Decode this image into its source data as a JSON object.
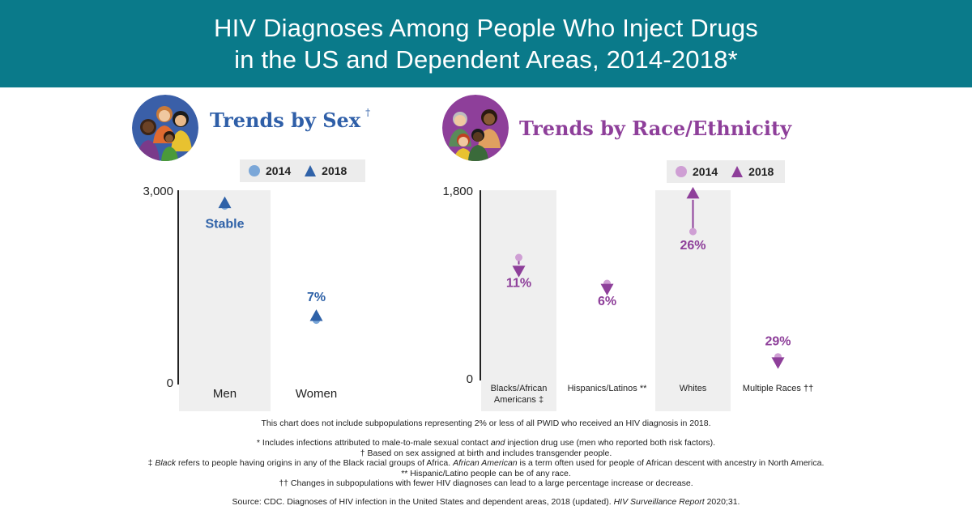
{
  "header": {
    "title_line1": "HIV Diagnoses Among People Who Inject Drugs",
    "title_line2": "in the US and Dependent Areas, 2014-2018*"
  },
  "colors": {
    "header_bg": "#0a7a8a",
    "sex_2014": "#7ba7d8",
    "sex_2018": "#2f62a8",
    "race_2014": "#cf9fd4",
    "race_2018": "#8e3f9a",
    "column_bg": "#efefef",
    "legend_bg": "#ececec"
  },
  "sex_section": {
    "title": "Trends by Sex",
    "title_mark": "†",
    "legend": {
      "label_2014": "2014",
      "label_2018": "2018"
    }
  },
  "race_section": {
    "title": "Trends by Race/Ethnicity",
    "legend": {
      "label_2014": "2014",
      "label_2018": "2018"
    }
  },
  "chart_data": [
    {
      "type": "scatter",
      "title": "Trends by Sex",
      "ylim": [
        0,
        3000
      ],
      "y_ticks": [
        "3,000",
        "0"
      ],
      "categories": [
        "Men",
        "Women"
      ],
      "series": [
        {
          "name": "2014",
          "marker": "circle",
          "values": [
            2750,
            950
          ]
        },
        {
          "name": "2018",
          "marker": "triangle",
          "values": [
            2800,
            1020
          ]
        }
      ],
      "annotations": [
        "Stable",
        "7%"
      ],
      "grid": false
    },
    {
      "type": "scatter",
      "title": "Trends by Race/Ethnicity",
      "ylim": [
        0,
        1800
      ],
      "y_ticks": [
        "1,800",
        "0"
      ],
      "categories": [
        "Blacks/African Americans ‡",
        "Hispanics/Latinos **",
        "Whites",
        "Multiple Races ††"
      ],
      "series": [
        {
          "name": "2014",
          "marker": "circle",
          "values": [
            1150,
            900,
            1400,
            190
          ]
        },
        {
          "name": "2018",
          "marker": "triangle",
          "values": [
            1020,
            845,
            1770,
            135
          ]
        }
      ],
      "annotations": [
        "11%",
        "6%",
        "26%",
        "29%"
      ],
      "grid": false
    }
  ],
  "footer": {
    "note": "This chart does not include subpopulations representing 2% or less of all PWID who received an HIV diagnosis in 2018.",
    "fn_star_pre": "* Includes infections attributed to male-to-male sexual contact ",
    "fn_star_em": "and",
    "fn_star_post": " injection drug use (men who reported both risk factors).",
    "fn_dagger": "† Based on sex assigned at birth and includes transgender people.",
    "fn_ddagger_pre": "‡ ",
    "fn_ddagger_em1": "Black",
    "fn_ddagger_mid": " refers to people having origins in any of the Black racial groups of Africa. ",
    "fn_ddagger_em2": "African American",
    "fn_ddagger_post": " is a term often used for people of African descent with ancestry in North America.",
    "fn_hisp": "** Hispanic/Latino people can be of any race.",
    "fn_multi": "†† Changes in subpopulations with fewer HIV diagnoses can lead to a large percentage increase or decrease.",
    "source_pre": "Source: CDC. Diagnoses of HIV infection in the United States and dependent areas, 2018 (updated). ",
    "source_em": "HIV Surveillance Report",
    "source_post": " 2020;31."
  }
}
